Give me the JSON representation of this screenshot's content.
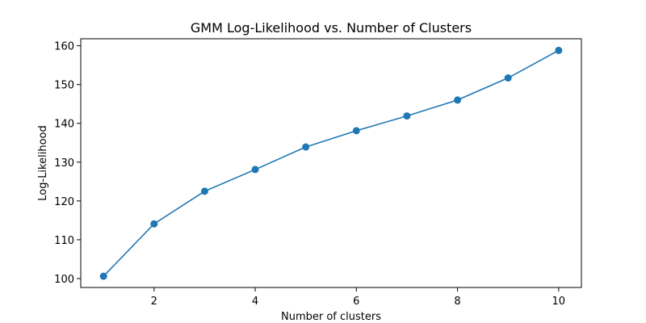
{
  "chart_data": {
    "type": "line",
    "title": "GMM Log-Likelihood vs. Number of Clusters",
    "xlabel": "Number of clusters",
    "ylabel": "Log-Likelihood",
    "xlim": [
      0.55,
      10.45
    ],
    "ylim": [
      97.7,
      161.8
    ],
    "xticks": [
      2,
      4,
      6,
      8,
      10
    ],
    "yticks": [
      100,
      110,
      120,
      130,
      140,
      150,
      160
    ],
    "grid": false,
    "series_color": "#1f77b4",
    "marker": "circle",
    "x": [
      1,
      2,
      3,
      4,
      5,
      6,
      7,
      8,
      9,
      10
    ],
    "series": [
      {
        "values": [
          100.6,
          114.1,
          122.5,
          128.1,
          133.9,
          138.1,
          141.9,
          146.0,
          151.7,
          158.8
        ]
      }
    ]
  }
}
